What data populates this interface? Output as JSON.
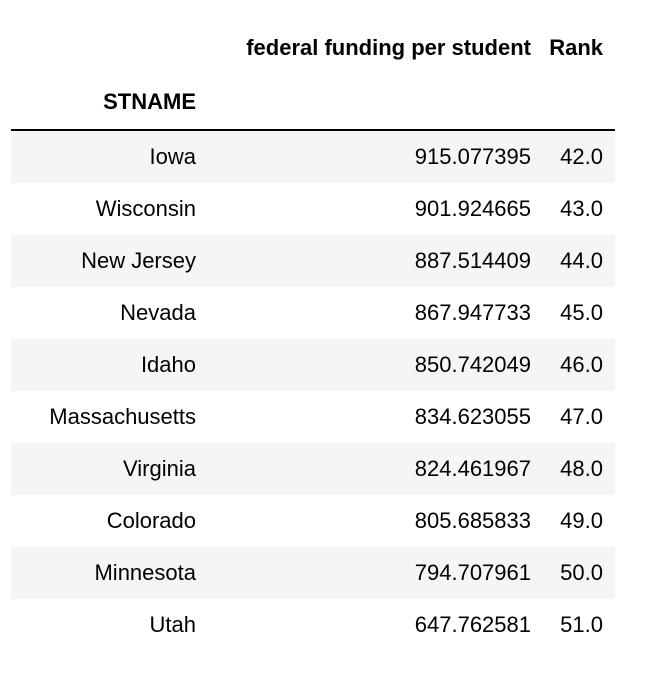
{
  "table": {
    "columns": [
      "federal funding per student",
      "Rank"
    ],
    "index_name": "STNAME",
    "rows": [
      {
        "state": "Iowa",
        "funding": "915.077395",
        "rank": "42.0"
      },
      {
        "state": "Wisconsin",
        "funding": "901.924665",
        "rank": "43.0"
      },
      {
        "state": "New Jersey",
        "funding": "887.514409",
        "rank": "44.0"
      },
      {
        "state": "Nevada",
        "funding": "867.947733",
        "rank": "45.0"
      },
      {
        "state": "Idaho",
        "funding": "850.742049",
        "rank": "46.0"
      },
      {
        "state": "Massachusetts",
        "funding": "834.623055",
        "rank": "47.0"
      },
      {
        "state": "Virginia",
        "funding": "824.461967",
        "rank": "48.0"
      },
      {
        "state": "Colorado",
        "funding": "805.685833",
        "rank": "49.0"
      },
      {
        "state": "Minnesota",
        "funding": "794.707961",
        "rank": "50.0"
      },
      {
        "state": "Utah",
        "funding": "647.762581",
        "rank": "51.0"
      }
    ]
  }
}
